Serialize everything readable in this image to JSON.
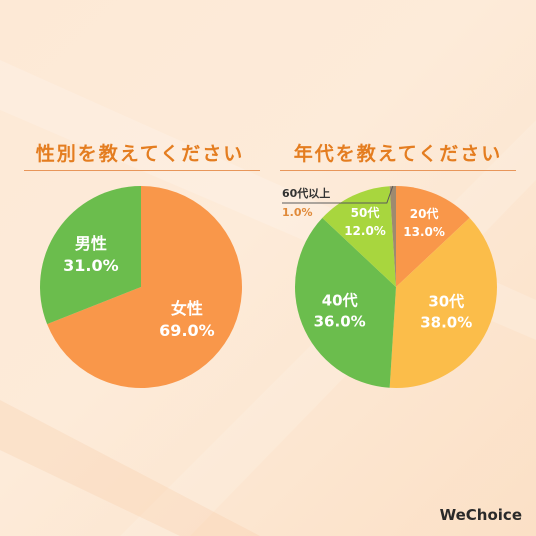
{
  "colors": {
    "orange": "#f9974a",
    "green": "#6bbd4d",
    "yellow": "#fbbd4a",
    "lime": "#a8d63e",
    "brown": "#9e8a70",
    "title": "#e47d20"
  },
  "logo": "WeChoice",
  "chart_data": [
    {
      "type": "pie",
      "title": "性別を教えてください",
      "categories": [
        "女性",
        "男性"
      ],
      "values": [
        69.0,
        31.0
      ],
      "value_labels": [
        "69.0%",
        "31.0%"
      ]
    },
    {
      "type": "pie",
      "title": "年代を教えてください",
      "categories": [
        "20代",
        "30代",
        "40代",
        "50代",
        "60代以上"
      ],
      "values": [
        13.0,
        38.0,
        36.0,
        12.0,
        1.0
      ],
      "value_labels": [
        "13.0%",
        "38.0%",
        "36.0%",
        "12.0%",
        "1.0%"
      ]
    }
  ]
}
